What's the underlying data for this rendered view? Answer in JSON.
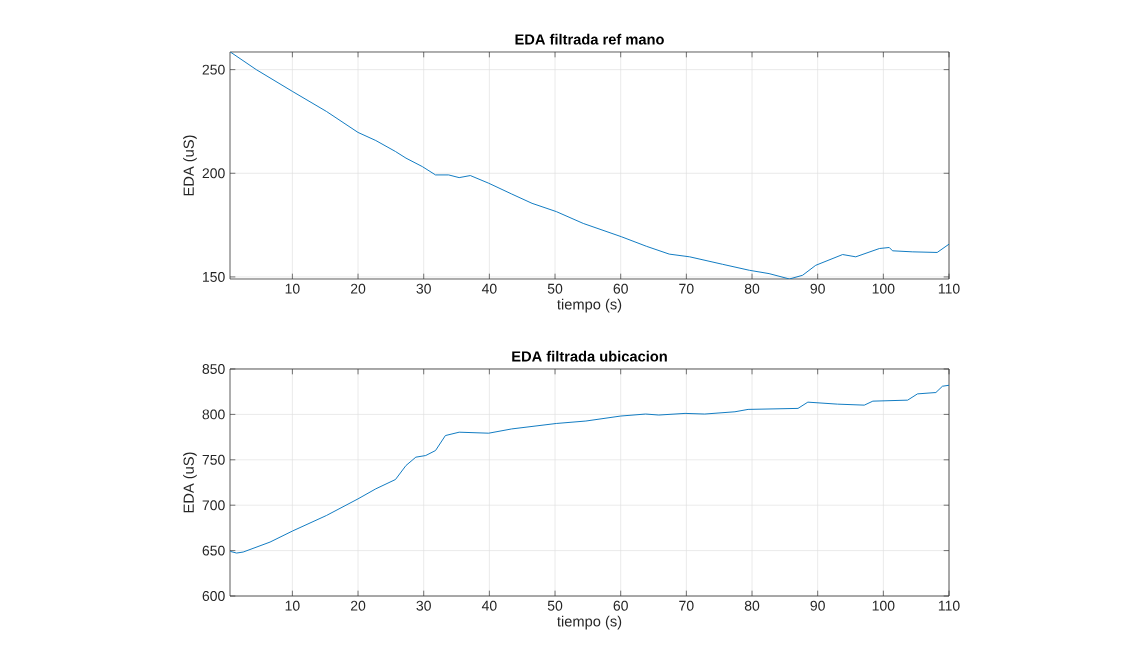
{
  "chart_data": [
    {
      "type": "line",
      "title": "EDA filtrada ref mano",
      "xlabel": "tiempo (s)",
      "ylabel": "EDA (uS)",
      "xlim": [
        0.5,
        110
      ],
      "ylim": [
        149,
        258.5
      ],
      "xticks": [
        10,
        20,
        30,
        40,
        50,
        60,
        70,
        80,
        90,
        100,
        110
      ],
      "yticks": [
        150,
        200,
        250
      ],
      "grid": true,
      "series": [
        {
          "color": "#0072bd",
          "x": [
            0.55,
            4.5,
            10,
            15.2,
            20,
            22.7,
            25.7,
            27.3,
            29.8,
            31.8,
            33.8,
            35.4,
            37.1,
            39.9,
            43.4,
            46.5,
            50.2,
            54.3,
            60.1,
            63.9,
            67.4,
            70.5,
            75.5,
            79.6,
            82.6,
            85.7,
            87.7,
            89.7,
            93.8,
            95.8,
            99.4,
            100.9,
            101.4,
            104.4,
            108.2,
            110
          ],
          "values": [
            258.5,
            250,
            239.5,
            229.8,
            219.7,
            215.8,
            210.5,
            207.3,
            203.2,
            199.2,
            199.2,
            197.9,
            198.9,
            195.2,
            190,
            185.5,
            181.5,
            175.8,
            169.4,
            164.8,
            161,
            159.7,
            156.1,
            153.2,
            151.6,
            149,
            150.8,
            155.6,
            160.8,
            159.7,
            163.7,
            164.2,
            162.6,
            162.1,
            161.8,
            165.8
          ]
        }
      ]
    },
    {
      "type": "line",
      "title": "EDA filtrada ubicacion",
      "xlabel": "tiempo (s)",
      "ylabel": "EDA (uS)",
      "xlim": [
        0.5,
        110
      ],
      "ylim": [
        600,
        850
      ],
      "xticks": [
        10,
        20,
        30,
        40,
        50,
        60,
        70,
        80,
        90,
        100,
        110
      ],
      "yticks": [
        600,
        650,
        700,
        750,
        800,
        850
      ],
      "grid": true,
      "series": [
        {
          "color": "#0072bd",
          "x": [
            0.55,
            1.5,
            2.5,
            6.6,
            10,
            15.2,
            20,
            22.7,
            25.7,
            27.3,
            28.8,
            30.3,
            31.8,
            33.3,
            35.4,
            39.9,
            43.4,
            50.2,
            54.7,
            60,
            63.8,
            65.8,
            69.8,
            72.8,
            77.4,
            79.4,
            87,
            88.5,
            93,
            97.1,
            98.4,
            103.7,
            105.2,
            108,
            109,
            110
          ],
          "values": [
            649.1,
            647.3,
            648.4,
            659.4,
            671.5,
            688.7,
            707,
            718,
            728.3,
            743.7,
            752.9,
            754.7,
            760.2,
            776.7,
            780.4,
            779.3,
            784,
            790,
            792.7,
            798.2,
            800.4,
            799.3,
            801.1,
            800.4,
            802.9,
            805.5,
            806.6,
            813.5,
            811.3,
            810.2,
            814.6,
            815.7,
            822.6,
            824.1,
            831,
            832.1
          ]
        }
      ]
    }
  ]
}
